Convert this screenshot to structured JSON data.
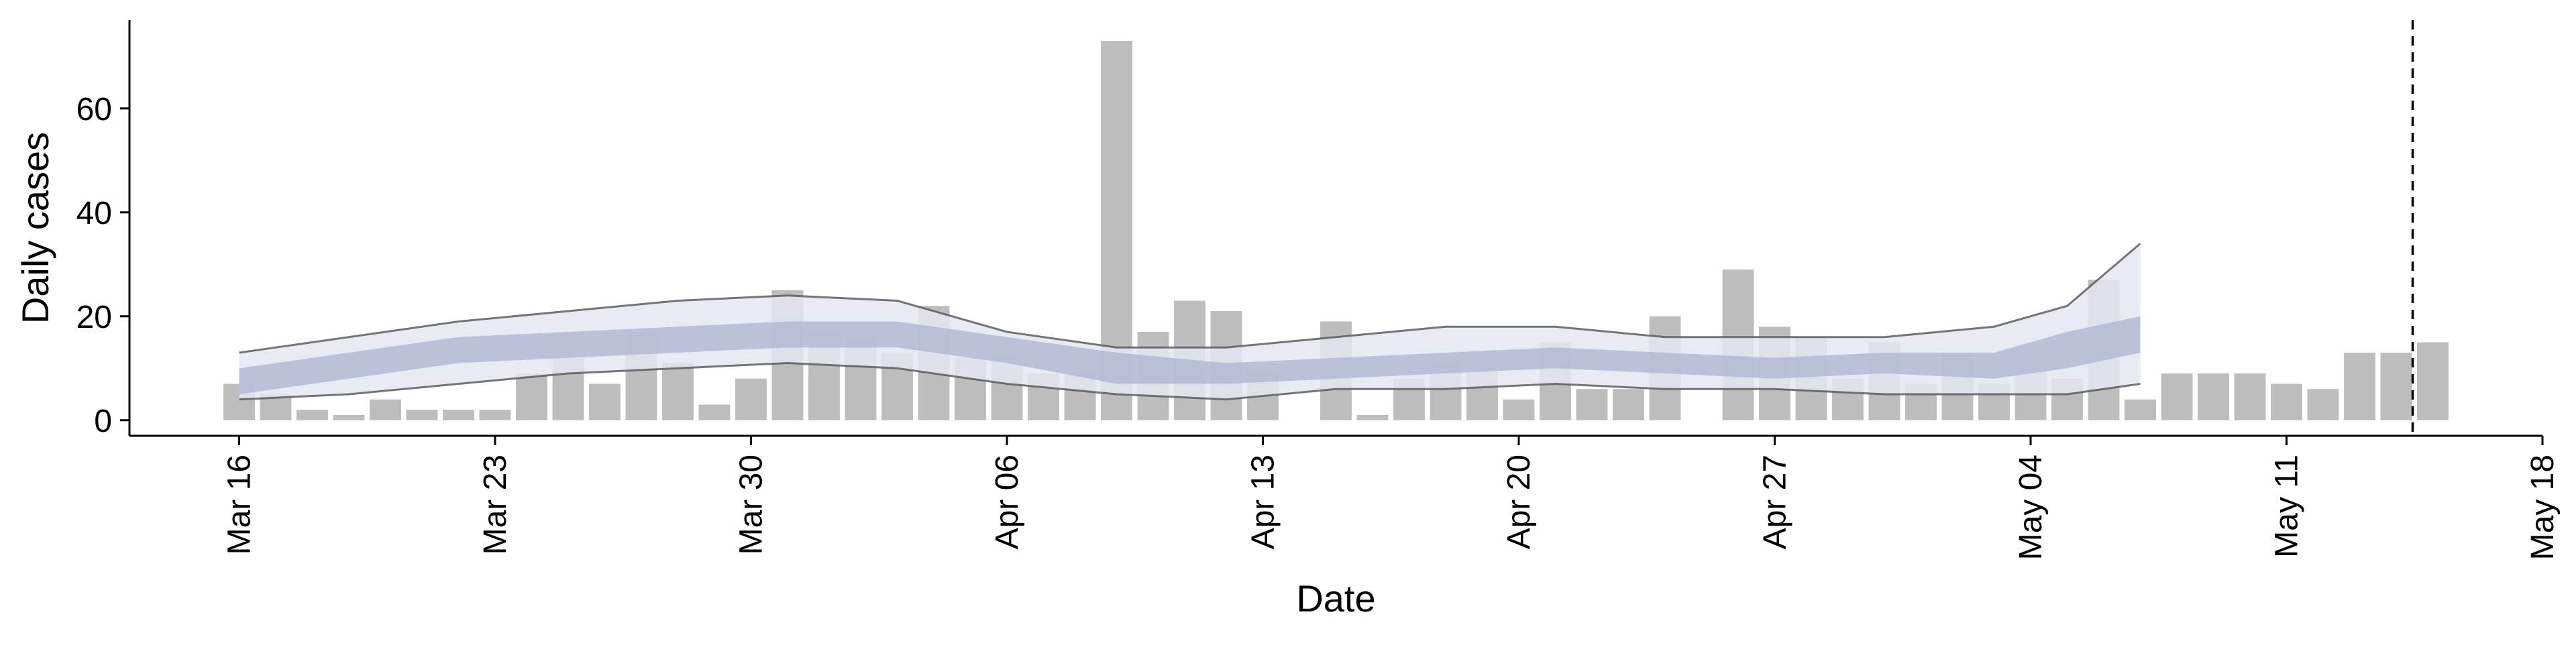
{
  "chart_data": {
    "type": "bar",
    "xlabel": "Date",
    "ylabel": "Daily cases",
    "ylim": [
      -3,
      77
    ],
    "yticks": [
      0,
      20,
      40,
      60
    ],
    "xlim": [
      "2020-03-13",
      "2020-05-18"
    ],
    "xticks": [
      {
        "date": "2020-03-16",
        "label": "Mar 16"
      },
      {
        "date": "2020-03-23",
        "label": "Mar 23"
      },
      {
        "date": "2020-03-30",
        "label": "Mar 30"
      },
      {
        "date": "2020-04-06",
        "label": "Apr 06"
      },
      {
        "date": "2020-04-13",
        "label": "Apr 13"
      },
      {
        "date": "2020-04-20",
        "label": "Apr 20"
      },
      {
        "date": "2020-04-27",
        "label": "Apr 27"
      },
      {
        "date": "2020-05-04",
        "label": "May 04"
      },
      {
        "date": "2020-05-11",
        "label": "May 11"
      },
      {
        "date": "2020-05-18",
        "label": "May 18"
      }
    ],
    "bars": {
      "color": "#bdbdbd",
      "x": [
        "2020-03-16",
        "2020-03-17",
        "2020-03-18",
        "2020-03-19",
        "2020-03-20",
        "2020-03-21",
        "2020-03-22",
        "2020-03-23",
        "2020-03-24",
        "2020-03-25",
        "2020-03-26",
        "2020-03-27",
        "2020-03-28",
        "2020-03-29",
        "2020-03-30",
        "2020-03-31",
        "2020-04-01",
        "2020-04-02",
        "2020-04-03",
        "2020-04-04",
        "2020-04-05",
        "2020-04-06",
        "2020-04-07",
        "2020-04-08",
        "2020-04-09",
        "2020-04-10",
        "2020-04-11",
        "2020-04-12",
        "2020-04-13",
        "2020-04-14",
        "2020-04-15",
        "2020-04-16",
        "2020-04-17",
        "2020-04-18",
        "2020-04-19",
        "2020-04-20",
        "2020-04-21",
        "2020-04-22",
        "2020-04-23",
        "2020-04-24",
        "2020-04-25",
        "2020-04-26",
        "2020-04-27",
        "2020-04-28",
        "2020-04-29",
        "2020-04-30",
        "2020-05-01",
        "2020-05-02",
        "2020-05-03",
        "2020-05-04",
        "2020-05-05",
        "2020-05-06",
        "2020-05-07",
        "2020-05-08",
        "2020-05-09",
        "2020-05-10",
        "2020-05-11",
        "2020-05-12",
        "2020-05-13",
        "2020-05-14",
        "2020-05-15"
      ],
      "values": [
        7,
        5,
        2,
        1,
        4,
        2,
        2,
        2,
        9,
        12,
        7,
        17,
        11,
        3,
        8,
        25,
        17,
        16,
        13,
        22,
        12,
        12,
        9,
        9,
        73,
        17,
        23,
        21,
        9,
        0,
        19,
        1,
        8,
        11,
        10,
        4,
        15,
        6,
        6,
        20,
        0,
        29,
        18,
        16,
        8,
        15,
        7,
        13,
        7,
        10,
        8,
        27,
        4,
        9,
        9,
        9,
        7,
        6,
        13,
        13,
        15
      ]
    },
    "estimate": {
      "x": [
        "2020-03-16",
        "2020-03-19",
        "2020-03-22",
        "2020-03-25",
        "2020-03-28",
        "2020-03-31",
        "2020-04-03",
        "2020-04-06",
        "2020-04-09",
        "2020-04-12",
        "2020-04-15",
        "2020-04-18",
        "2020-04-21",
        "2020-04-24",
        "2020-04-27",
        "2020-04-30",
        "2020-05-03",
        "2020-05-05",
        "2020-05-07"
      ],
      "median": [
        8,
        11,
        14,
        15,
        16,
        17,
        17,
        14,
        10,
        9,
        10,
        11,
        12,
        11,
        10,
        11,
        11,
        14,
        17
      ],
      "inner_lower": [
        5,
        8,
        11,
        12,
        13,
        14,
        14,
        11,
        7,
        7,
        8,
        9,
        10,
        9,
        8,
        9,
        8,
        10,
        13
      ],
      "inner_upper": [
        10,
        13,
        16,
        17,
        18,
        19,
        19,
        16,
        13,
        11,
        12,
        13,
        14,
        13,
        12,
        13,
        13,
        17,
        20
      ],
      "outer_lower": [
        4,
        5,
        7,
        9,
        10,
        11,
        10,
        7,
        5,
        4,
        6,
        6,
        7,
        6,
        6,
        5,
        5,
        5,
        7
      ],
      "outer_upper": [
        13,
        16,
        19,
        21,
        23,
        24,
        23,
        17,
        14,
        14,
        16,
        18,
        18,
        16,
        16,
        16,
        18,
        22,
        34
      ],
      "inner_color": "#a9b4d0",
      "outer_color": "#e4e7f1",
      "line_color": "#555555"
    },
    "vline": {
      "date": "2020-05-15",
      "style": "dashed"
    },
    "grid": false,
    "legend": "none"
  }
}
